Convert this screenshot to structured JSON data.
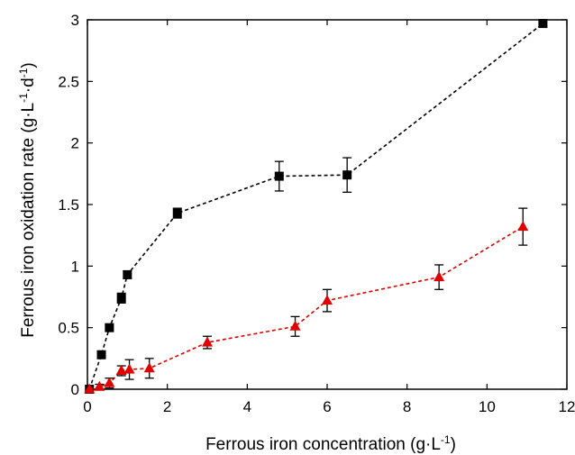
{
  "chart_data": {
    "type": "scatter",
    "title": "",
    "xlabel": {
      "main": "Ferrous iron concentration (g·L",
      "sup": "-1",
      "tail": ")"
    },
    "ylabel": {
      "main": "Ferrous iron oxidation rate (g·L",
      "sup1": "-1",
      "mid": "·d",
      "sup2": "-1",
      "tail": ")"
    },
    "xlim": [
      0,
      12
    ],
    "ylim": [
      0,
      3
    ],
    "x_ticks": [
      0,
      2,
      4,
      6,
      8,
      10,
      12
    ],
    "y_ticks": [
      0,
      0.5,
      1,
      1.5,
      2,
      2.5,
      3
    ],
    "x_tick_labels": [
      "0",
      "2",
      "4",
      "6",
      "8",
      "10",
      "12"
    ],
    "y_tick_labels": [
      "0",
      "0.5",
      "1",
      "1.5",
      "2",
      "2.5",
      "3"
    ],
    "grid": false,
    "series": [
      {
        "marker": "square",
        "color": "#000000",
        "line_style": "dashed",
        "points": [
          {
            "x": 0.05,
            "y": 0.0,
            "err": 0.01
          },
          {
            "x": 0.35,
            "y": 0.28,
            "err": 0.03
          },
          {
            "x": 0.55,
            "y": 0.5,
            "err": 0.02
          },
          {
            "x": 0.85,
            "y": 0.74,
            "err": 0.04
          },
          {
            "x": 1.0,
            "y": 0.93,
            "err": 0.03
          },
          {
            "x": 2.25,
            "y": 1.43,
            "err": 0.04
          },
          {
            "x": 4.8,
            "y": 1.73,
            "err": 0.12
          },
          {
            "x": 6.5,
            "y": 1.74,
            "err": 0.14
          },
          {
            "x": 11.4,
            "y": 2.97,
            "err": 0.03
          }
        ]
      },
      {
        "marker": "triangle",
        "color": "#e00000",
        "line_style": "dashed",
        "points": [
          {
            "x": 0.05,
            "y": 0.0,
            "err": 0.01
          },
          {
            "x": 0.3,
            "y": 0.02,
            "err": 0.02
          },
          {
            "x": 0.55,
            "y": 0.05,
            "err": 0.04
          },
          {
            "x": 0.85,
            "y": 0.15,
            "err": 0.04
          },
          {
            "x": 1.05,
            "y": 0.16,
            "err": 0.08
          },
          {
            "x": 1.55,
            "y": 0.17,
            "err": 0.08
          },
          {
            "x": 3.0,
            "y": 0.38,
            "err": 0.05
          },
          {
            "x": 5.2,
            "y": 0.51,
            "err": 0.08
          },
          {
            "x": 6.0,
            "y": 0.72,
            "err": 0.09
          },
          {
            "x": 8.8,
            "y": 0.91,
            "err": 0.1
          },
          {
            "x": 10.9,
            "y": 1.32,
            "err": 0.15
          }
        ]
      }
    ]
  }
}
